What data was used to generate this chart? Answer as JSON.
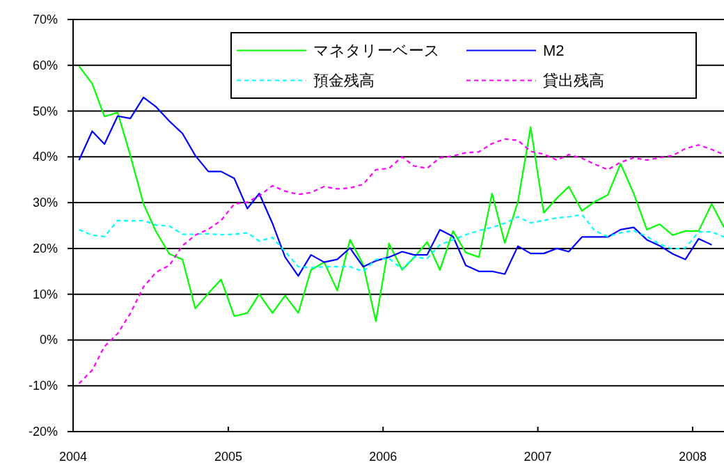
{
  "chart_data": {
    "type": "line",
    "x": [
      "2004-01-15",
      "2004-02-15",
      "2004-03-15",
      "2004-04-15",
      "2004-05-15",
      "2004-06-15",
      "2004-07-15",
      "2004-08-15",
      "2004-09-15",
      "2004-10-15",
      "2004-11-15",
      "2004-12-15",
      "2005-01-15",
      "2005-02-15",
      "2005-03-15",
      "2005-04-15",
      "2005-05-15",
      "2005-06-15",
      "2005-07-15",
      "2005-08-15",
      "2005-09-15",
      "2005-10-15",
      "2005-11-15",
      "2005-12-15",
      "2006-01-15",
      "2006-02-15",
      "2006-03-15",
      "2006-04-15",
      "2006-05-15",
      "2006-06-15",
      "2006-07-15",
      "2006-08-15",
      "2006-09-15",
      "2006-10-15",
      "2006-11-15",
      "2006-12-15",
      "2007-01-15",
      "2007-02-15",
      "2007-03-15",
      "2007-04-15",
      "2007-05-15",
      "2007-06-15",
      "2007-07-15",
      "2007-08-15",
      "2007-09-15",
      "2007-10-15",
      "2007-11-15",
      "2007-12-15",
      "2008-01-15",
      "2008-02-15",
      "2008-03-15"
    ],
    "series": [
      {
        "name": "マネタリーベース",
        "color": "#00ff00",
        "line_style": "solid",
        "values": [
          59.8,
          56.0,
          48.8,
          49.7,
          40.3,
          29.7,
          23.6,
          18.8,
          17.6,
          6.9,
          10.2,
          13.2,
          5.2,
          5.9,
          10.0,
          5.9,
          9.7,
          5.9,
          15.3,
          17.0,
          10.8,
          21.9,
          16.5,
          4.1,
          21.1,
          15.3,
          18.0,
          21.4,
          15.3,
          23.8,
          19.1,
          18.1,
          32.0,
          21.2,
          30.2,
          46.5,
          27.8,
          31.0,
          33.5,
          28.2,
          30.2,
          31.7,
          38.5,
          32.0,
          24.1,
          25.3,
          22.9,
          23.8,
          23.8,
          29.7,
          24.6
        ]
      },
      {
        "name": "M2",
        "color": "#0000ff",
        "line_style": "solid",
        "values": [
          39.3,
          45.6,
          42.8,
          48.9,
          48.4,
          53.0,
          50.9,
          47.8,
          45.1,
          40.3,
          36.8,
          36.8,
          35.3,
          28.7,
          32.0,
          25.5,
          18.1,
          14.0,
          18.6,
          17.0,
          17.6,
          20.1,
          16.0,
          17.3,
          18.1,
          19.3,
          18.6,
          18.6,
          24.1,
          22.6,
          16.3,
          15.0,
          15.0,
          14.4,
          20.5,
          18.9,
          18.9,
          20.0,
          19.3,
          22.5,
          22.5,
          22.5,
          24.1,
          24.6,
          21.9,
          20.6,
          18.8,
          17.6,
          22.1,
          20.8,
          null
        ]
      },
      {
        "name": "預金残高",
        "color": "#00ffff",
        "line_style": "dashed",
        "values": [
          24.1,
          22.9,
          22.6,
          26.1,
          26.0,
          26.1,
          25.1,
          24.9,
          23.1,
          23.1,
          23.2,
          23.0,
          23.1,
          23.4,
          21.6,
          22.4,
          19.3,
          16.0,
          15.8,
          16.0,
          16.0,
          16.0,
          15.0,
          17.6,
          17.8,
          15.5,
          18.1,
          17.8,
          20.8,
          21.9,
          23.0,
          23.9,
          24.6,
          25.5,
          26.9,
          25.6,
          26.1,
          26.7,
          26.9,
          27.4,
          23.9,
          22.6,
          23.4,
          23.9,
          22.6,
          20.9,
          19.9,
          20.1,
          23.6,
          23.6,
          22.5
        ]
      },
      {
        "name": "貸出残高",
        "color": "#ff00ff",
        "line_style": "dashed",
        "values": [
          -9.5,
          -6.6,
          -1.4,
          1.4,
          5.8,
          11.6,
          14.8,
          16.3,
          20.6,
          22.9,
          24.2,
          26.1,
          29.7,
          30.1,
          31.5,
          33.7,
          32.5,
          31.8,
          32.2,
          33.5,
          33.0,
          33.2,
          34.0,
          37.2,
          37.5,
          40.0,
          38.0,
          37.5,
          39.8,
          40.2,
          40.9,
          41.1,
          42.9,
          43.9,
          43.6,
          41.2,
          40.6,
          39.3,
          40.5,
          39.7,
          38.4,
          37.2,
          38.8,
          39.8,
          39.3,
          39.8,
          40.3,
          41.8,
          42.6,
          41.6,
          40.5
        ]
      }
    ],
    "xlim": [
      "2004",
      "2008-03-15"
    ],
    "xticks": [
      "2004",
      "2005",
      "2006",
      "2007",
      "2008"
    ],
    "ylim": [
      -20,
      70
    ],
    "yticks": [
      {
        "value": -20,
        "label": "-20%"
      },
      {
        "value": -10,
        "label": "-10%"
      },
      {
        "value": 0,
        "label": "0%"
      },
      {
        "value": 10,
        "label": "10%"
      },
      {
        "value": 20,
        "label": "20%"
      },
      {
        "value": 30,
        "label": "30%"
      },
      {
        "value": 40,
        "label": "40%"
      },
      {
        "value": 50,
        "label": "50%"
      },
      {
        "value": 60,
        "label": "60%"
      },
      {
        "value": 70,
        "label": "70%"
      }
    ],
    "grid": "y",
    "legend": "top right"
  }
}
